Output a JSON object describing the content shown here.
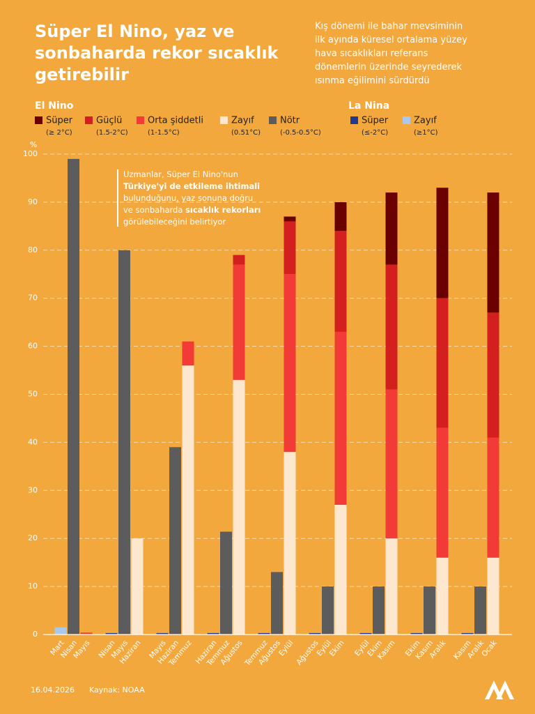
{
  "chart_data": {
    "type": "bar",
    "title": [
      "Süper El Nino, yaz ve",
      "sonbaharda rekor sıcaklık",
      "getirebilir"
    ],
    "subtitle": [
      "Kış dönemi ile bahar mevsiminin",
      "ilk ayında küresel ortalama yüzey",
      "hava sıcaklıkları referans",
      "dönemlerin üzerinde seyrederek",
      "ısınma eğilimini sürdürdü"
    ],
    "y_label": "%",
    "ylim": [
      0,
      100
    ],
    "yticks": [
      0,
      10,
      20,
      30,
      40,
      50,
      60,
      70,
      80,
      90,
      100
    ],
    "grid": true,
    "categories": [
      [
        "Mart",
        "Nisan",
        "Mayıs"
      ],
      [
        "Nisan",
        "Mayıs",
        "Haziran"
      ],
      [
        "Mayıs",
        "Haziran",
        "Temmuz"
      ],
      [
        "Haziran",
        "Temmuz",
        "Ağustos"
      ],
      [
        "Temmuz",
        "Ağustos",
        "Eylül"
      ],
      [
        "Ağustos",
        "Eylül",
        "Ekim"
      ],
      [
        "Eylül",
        "Ekim",
        "Kasım"
      ],
      [
        "Ekim",
        "Kasım",
        "Aralık"
      ],
      [
        "Kasım",
        "Aralık",
        "Ocak"
      ]
    ],
    "groups": [
      {
        "title": "El Nino",
        "series": [
          {
            "name": "Süper",
            "sublabel": "(≥ 2°C)",
            "color": "#6b0000",
            "values": [
              null,
              null,
              null,
              null,
              1,
              6,
              15,
              23,
              25
            ]
          },
          {
            "name": "Güçlü",
            "sublabel": "(1.5-2°C)",
            "color": "#d3201f",
            "values": [
              null,
              null,
              null,
              2,
              11,
              21,
              26,
              27,
              26
            ]
          },
          {
            "name": "Orta şiddetli",
            "sublabel": "(1-1.5°C)",
            "color": "#f23a36",
            "values": [
              0.4,
              null,
              5,
              24,
              37,
              36,
              31,
              27,
              25
            ]
          },
          {
            "name": "Zayıf",
            "sublabel": "(0.51°C)",
            "color": "#fde8cf",
            "values": [
              null,
              20,
              56,
              53,
              38,
              27,
              20,
              16,
              16
            ]
          },
          {
            "name": "Nötr",
            "sublabel": "(-0.5-0.5°C)",
            "color": "#5c5c5c",
            "values": [
              99,
              80,
              39,
              21.4,
              13,
              10,
              10,
              10,
              10
            ]
          }
        ]
      },
      {
        "title": "La Nina",
        "series": [
          {
            "name": "Süper",
            "sublabel": "(≤-2°C)",
            "color": "#1f3a8f",
            "values": [
              null,
              0.3,
              0.3,
              0.3,
              0.3,
              0.3,
              0.3,
              0.3,
              0.3
            ]
          },
          {
            "name": "Zayıf",
            "sublabel": "(≥1°C)",
            "color": "#a9c8ec",
            "values": [
              1.5,
              null,
              null,
              null,
              null,
              null,
              null,
              null,
              null
            ]
          }
        ]
      }
    ],
    "annotation": [
      [
        {
          "text": "Uzmanlar, Süper El Nino'nun",
          "bold": false
        }
      ],
      [
        {
          "text": "Türkiye'yi de etkileme ihtimali",
          "bold": true
        }
      ],
      [
        {
          "text": "bulunduğunu, yaz sonuna doğru",
          "bold": false
        }
      ],
      [
        {
          "text": "ve sonbaharda ",
          "bold": false
        },
        {
          "text": "sıcaklık rekorları",
          "bold": true
        }
      ],
      [
        {
          "text": "görülebileceğini belirtiyor",
          "bold": false
        }
      ]
    ],
    "date": "16.04.2026",
    "source": "Kaynak: NOAA"
  }
}
